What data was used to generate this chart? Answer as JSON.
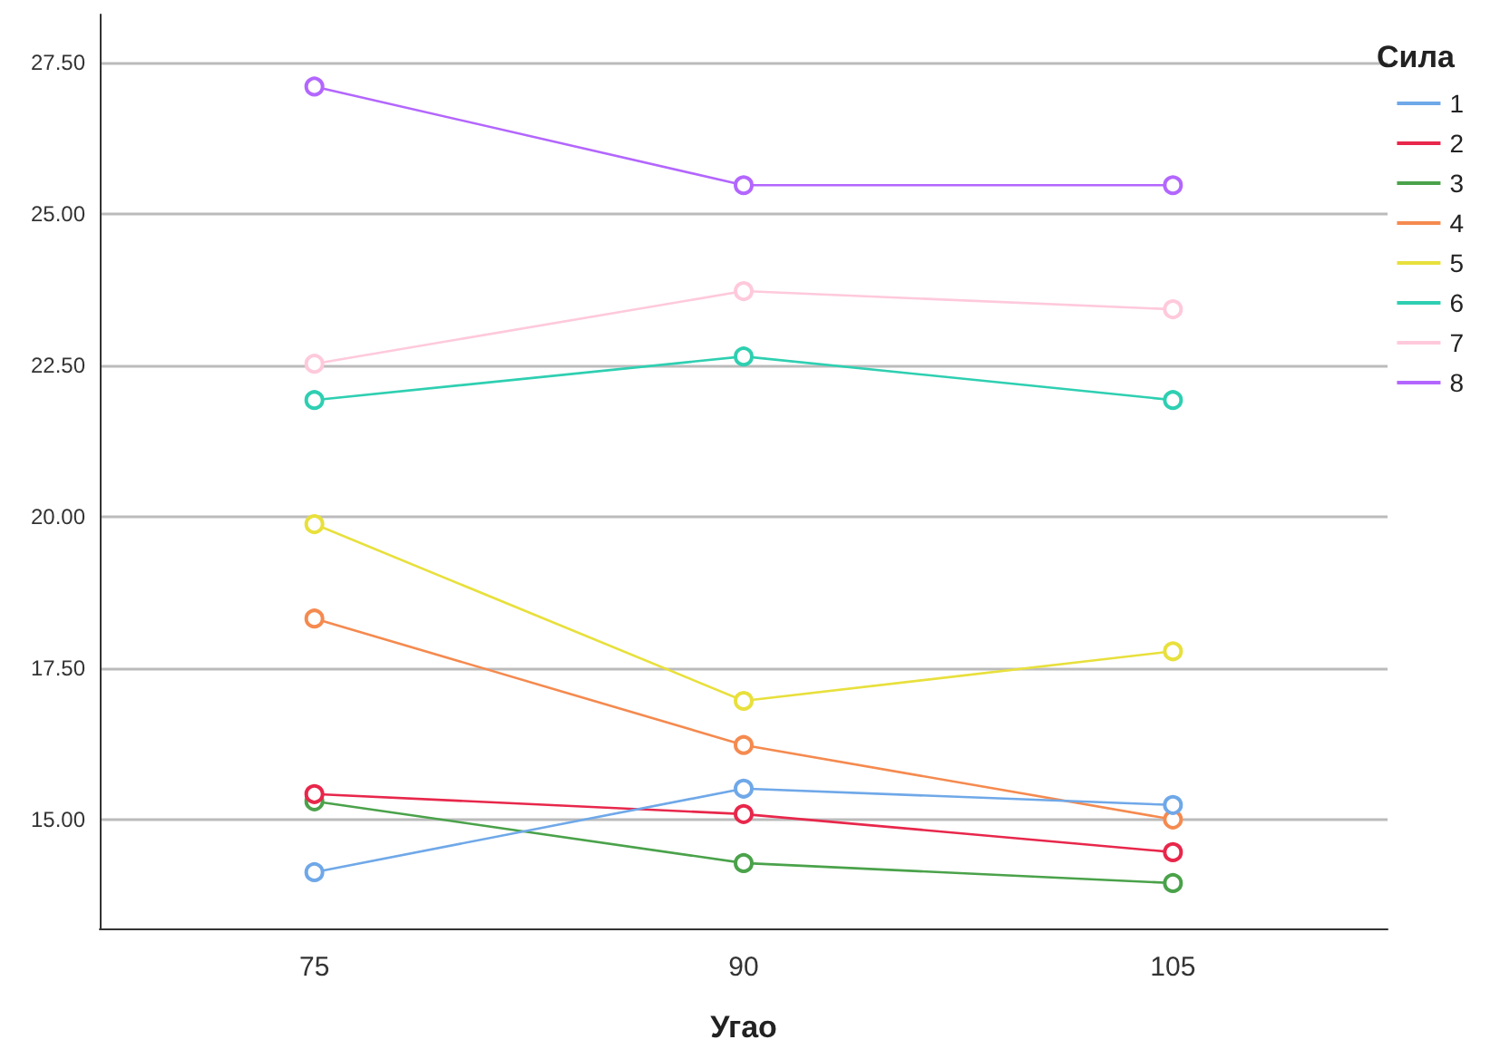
{
  "chart_data": {
    "type": "line",
    "xlabel": "Угао",
    "legend_title": "Сила",
    "categories": [
      "75",
      "90",
      "105"
    ],
    "series": [
      {
        "name": "1",
        "color": "#6fa8e8",
        "values": [
          14.13,
          15.51,
          15.24
        ]
      },
      {
        "name": "2",
        "color": "#e8274b",
        "values": [
          15.42,
          15.09,
          14.46
        ]
      },
      {
        "name": "3",
        "color": "#4aa24a",
        "values": [
          15.3,
          14.28,
          13.95
        ]
      },
      {
        "name": "4",
        "color": "#f58a4f",
        "values": [
          18.32,
          16.23,
          15.0
        ]
      },
      {
        "name": "5",
        "color": "#e8e03c",
        "values": [
          19.88,
          16.96,
          17.78
        ]
      },
      {
        "name": "6",
        "color": "#2ecfb1",
        "values": [
          21.93,
          22.65,
          21.93
        ]
      },
      {
        "name": "7",
        "color": "#ffc9dc",
        "values": [
          22.53,
          23.73,
          23.43
        ]
      },
      {
        "name": "8",
        "color": "#b366ff",
        "values": [
          27.11,
          25.48,
          25.48
        ]
      }
    ],
    "ylim": [
      13.2,
      28.3
    ],
    "yticks": [
      {
        "value": 15,
        "label": "15.00"
      },
      {
        "value": 17.5,
        "label": "17.50"
      },
      {
        "value": 20,
        "label": "20.00"
      },
      {
        "value": 22.5,
        "label": "22.50"
      },
      {
        "value": 25,
        "label": "25.00"
      },
      {
        "value": 27.5,
        "label": "27.50"
      }
    ],
    "grid": "y",
    "legend": "right",
    "marker": "circle",
    "line_style": "solid"
  }
}
